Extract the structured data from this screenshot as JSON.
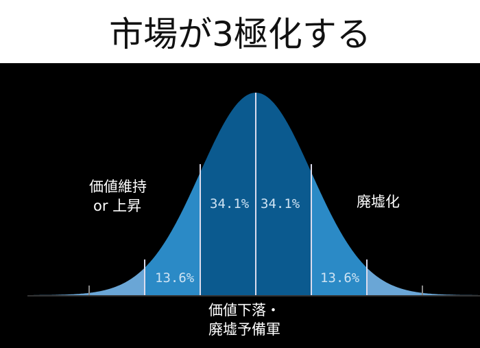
{
  "title": "市場が3極化する",
  "diagram": {
    "type": "normal-distribution",
    "colors": {
      "center": "#0b5a8f",
      "middle": "#2b8ac6",
      "outer": "#6aa6d6",
      "background": "#000000"
    },
    "segments": [
      {
        "label": "13.6%"
      },
      {
        "label": "34.1%"
      },
      {
        "label": "34.1%"
      },
      {
        "label": "13.6%"
      }
    ],
    "left_label": [
      "価値維持",
      "or 上昇"
    ],
    "right_label": "廃墟化",
    "bottom_label": [
      "価値下落・",
      "廃墟予備軍"
    ]
  }
}
